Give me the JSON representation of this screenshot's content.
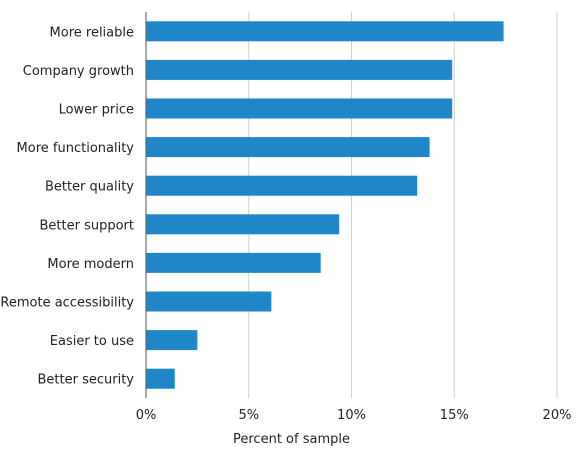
{
  "chart_data": {
    "type": "bar",
    "orientation": "horizontal",
    "categories": [
      "More reliable",
      "Company growth",
      "Lower price",
      "More functionality",
      "Better quality",
      "Better support",
      "More modern",
      "Remote accessibility",
      "Easier to use",
      "Better security"
    ],
    "values": [
      17.4,
      14.9,
      14.9,
      13.8,
      13.2,
      9.4,
      8.5,
      6.1,
      2.5,
      1.4
    ],
    "xlabel": "Percent of sample",
    "ylabel": "",
    "xlim": [
      0,
      20
    ],
    "xticks": [
      0,
      5,
      10,
      15,
      20
    ],
    "xtick_labels": [
      "0%",
      "5%",
      "10%",
      "15%",
      "20%"
    ],
    "grid": "vertical",
    "bar_color": "#1f87c8"
  }
}
